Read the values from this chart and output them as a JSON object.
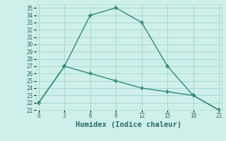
{
  "line1_x": [
    0,
    3,
    6,
    9,
    12,
    15,
    18,
    21
  ],
  "line1_y": [
    22,
    27,
    34,
    35,
    33,
    27,
    23,
    21
  ],
  "line2_x": [
    0,
    3,
    6,
    9,
    12,
    15,
    18,
    21
  ],
  "line2_y": [
    22,
    27,
    26,
    25,
    24,
    23.5,
    23,
    21
  ],
  "line_color": "#2e8b74",
  "bg_color": "#cff0ea",
  "grid_color": "#a8d8d0",
  "xlabel": "Humidex (Indice chaleur)",
  "ylim": [
    21,
    35.5
  ],
  "xlim": [
    -0.3,
    21.3
  ],
  "yticks": [
    21,
    22,
    23,
    24,
    25,
    26,
    27,
    28,
    29,
    30,
    31,
    32,
    33,
    34,
    35
  ],
  "xticks": [
    0,
    3,
    6,
    9,
    12,
    15,
    18,
    21
  ],
  "font_color": "#2a6b60",
  "tick_fontsize": 5.5,
  "xlabel_fontsize": 7.5
}
